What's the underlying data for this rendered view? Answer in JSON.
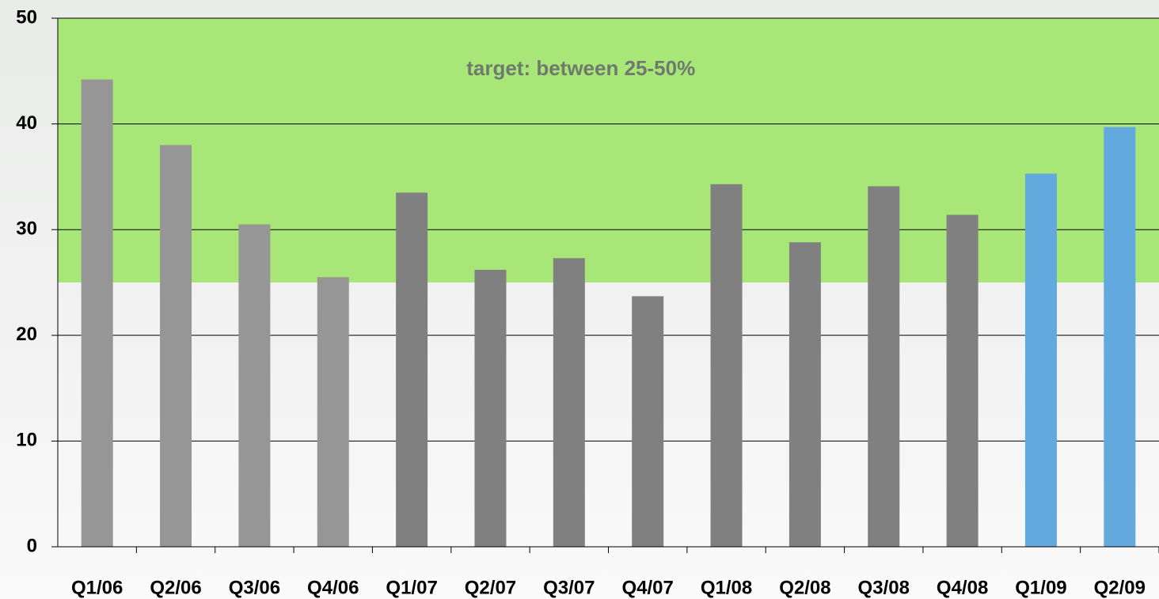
{
  "chart_data": {
    "type": "bar",
    "categories": [
      "Q1/06",
      "Q2/06",
      "Q3/06",
      "Q4/06",
      "Q1/07",
      "Q2/07",
      "Q3/07",
      "Q4/07",
      "Q1/08",
      "Q2/08",
      "Q3/08",
      "Q4/08",
      "Q1/09",
      "Q2/09"
    ],
    "values": [
      44.2,
      38.0,
      30.5,
      25.5,
      33.5,
      26.2,
      27.3,
      23.7,
      34.3,
      28.8,
      34.1,
      31.4,
      35.3,
      39.7
    ],
    "colors": [
      "#969696",
      "#969696",
      "#969696",
      "#969696",
      "#808080",
      "#808080",
      "#808080",
      "#808080",
      "#808080",
      "#808080",
      "#808080",
      "#808080",
      "#62a9de",
      "#62a9de"
    ],
    "ylim": [
      0,
      50
    ],
    "yticks": [
      0,
      10,
      20,
      30,
      40,
      50
    ],
    "grid": true,
    "target_band": {
      "range": [
        25,
        50
      ],
      "color": "#a2e66c",
      "label": "target: between 25-50%"
    }
  }
}
